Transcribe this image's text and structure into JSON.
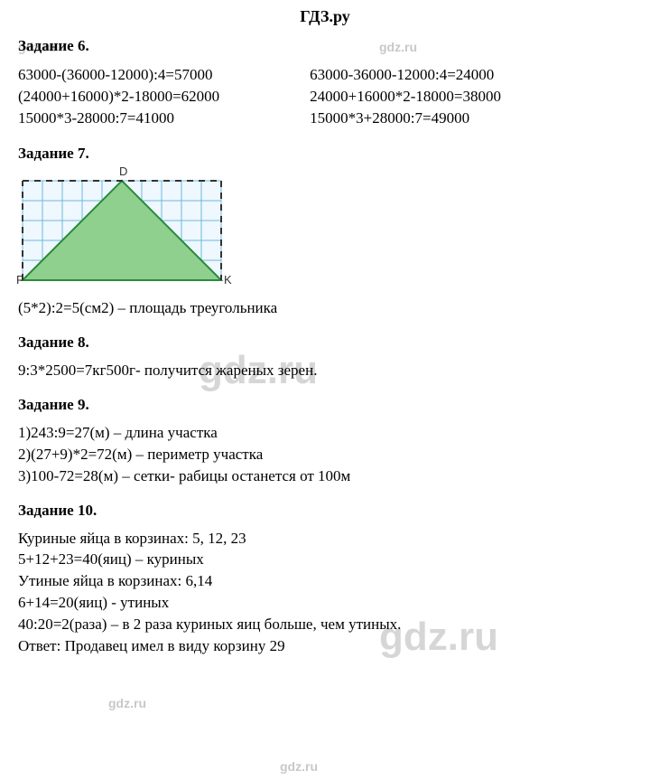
{
  "header": "ГДЗ.ру",
  "watermarks": {
    "small": "gdz.ru",
    "big": "gdz.ru"
  },
  "task6": {
    "title": "Задание 6.",
    "left": [
      "63000-(36000-12000):4=57000",
      "(24000+16000)*2-18000=62000",
      "15000*3-28000:7=41000"
    ],
    "right": [
      "63000-36000-12000:4=24000",
      "24000+16000*2-18000=38000",
      "15000*3+28000:7=49000"
    ]
  },
  "task7": {
    "title": "Задание 7.",
    "caption": "(5*2):2=5(см2) – площадь треугольника",
    "triangle": {
      "grid_cols": 10,
      "grid_rows": 5,
      "cell": 22,
      "grid_color": "#6fb7df",
      "grid_bg": "#eef8fe",
      "fill": "#8fd08f",
      "stroke": "#2a8a3a",
      "dash_color": "#333333",
      "labels": {
        "F": "F",
        "D": "D",
        "K": "K"
      }
    }
  },
  "task8": {
    "title": "Задание 8.",
    "line": "9:3*2500=7кг500г- получится жареных зерен."
  },
  "task9": {
    "title": "Задание 9.",
    "lines": [
      "1)243:9=27(м) – длина участка",
      "2)(27+9)*2=72(м) – периметр участка",
      "3)100-72=28(м) – сетки- рабицы останется от 100м"
    ]
  },
  "task10": {
    "title": "Задание 10.",
    "lines": [
      "Куриные яйца в корзинах: 5, 12, 23",
      "5+12+23=40(яиц) – куриных",
      "Утиные яйца в корзинах: 6,14",
      "6+14=20(яиц) - утиных",
      "40:20=2(раза) – в 2 раза куриных яиц больше, чем утиных.",
      "Ответ: Продавец имел в виду корзину 29"
    ]
  }
}
